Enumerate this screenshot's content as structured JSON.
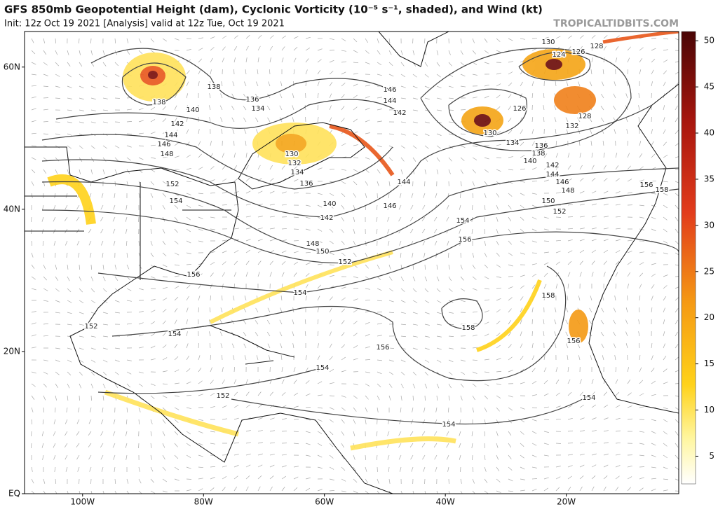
{
  "header": {
    "title": "GFS 850mb Geopotential Height (dam), Cyclonic Vorticity (10⁻⁵ s⁻¹, shaded), and Wind (kt)",
    "subtitle": "Init: 12z Oct 19 2021   [Analysis]   valid at 12z Tue, Oct 19 2021",
    "brand": "TROPICALTIDBITS.COM"
  },
  "map": {
    "lon_range": [
      -109.6,
      -1.4
    ],
    "lat_range": [
      0,
      65
    ],
    "lat_ticks": [
      {
        "value": 60,
        "label": "60N"
      },
      {
        "value": 40,
        "label": "40N"
      },
      {
        "value": 20,
        "label": "20N"
      },
      {
        "value": 0,
        "label": "EQ"
      }
    ],
    "lon_ticks": [
      {
        "value": -100,
        "label": "100W"
      },
      {
        "value": -80,
        "label": "80W"
      },
      {
        "value": -60,
        "label": "60W"
      },
      {
        "value": -40,
        "label": "40W"
      },
      {
        "value": -20,
        "label": "20W"
      }
    ],
    "contour_labels": [
      138,
      140,
      142,
      144,
      146,
      148,
      152,
      154,
      138,
      136,
      134,
      130,
      132,
      134,
      136,
      140,
      142,
      148,
      150,
      152,
      154,
      156,
      152,
      154,
      152,
      154,
      156,
      158,
      154,
      154,
      156,
      158,
      156,
      154,
      146,
      144,
      142,
      144,
      146,
      130,
      124,
      126,
      128,
      126,
      128,
      130,
      132,
      134,
      136,
      138,
      140,
      142,
      144,
      146,
      148,
      150,
      152,
      156,
      158
    ]
  },
  "colorbar": {
    "range": [
      2,
      51
    ],
    "ticks": [
      5,
      10,
      15,
      20,
      25,
      30,
      35,
      40,
      45,
      50
    ]
  }
}
